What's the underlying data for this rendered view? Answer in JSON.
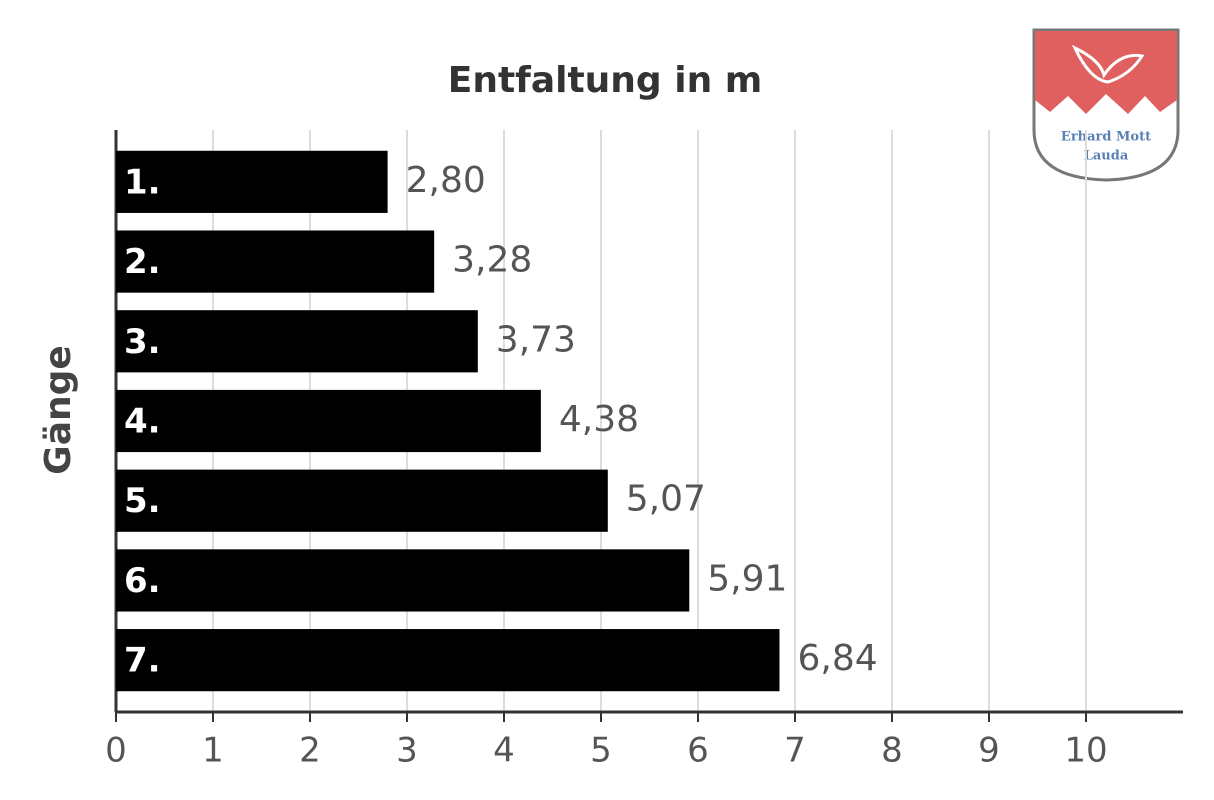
{
  "chart_data": {
    "type": "barh",
    "title": "Entfaltung in m",
    "y_label": "Gänge",
    "categories": [
      "1.",
      "2.",
      "3.",
      "4.",
      "5.",
      "6.",
      "7."
    ],
    "values": [
      2.8,
      3.28,
      3.73,
      4.38,
      5.07,
      5.91,
      6.84
    ],
    "value_labels": [
      "2,80",
      "3,28",
      "3,73",
      "4,38",
      "5,07",
      "5,91",
      "6,84"
    ],
    "color": "#000000",
    "xlim": [
      0,
      11
    ],
    "xticks": [
      0,
      1,
      2,
      3,
      4,
      5,
      6,
      7,
      8,
      9,
      10
    ],
    "grid": true
  },
  "logo": {
    "lines": [
      "Erhard Mott",
      "Lauda"
    ]
  }
}
